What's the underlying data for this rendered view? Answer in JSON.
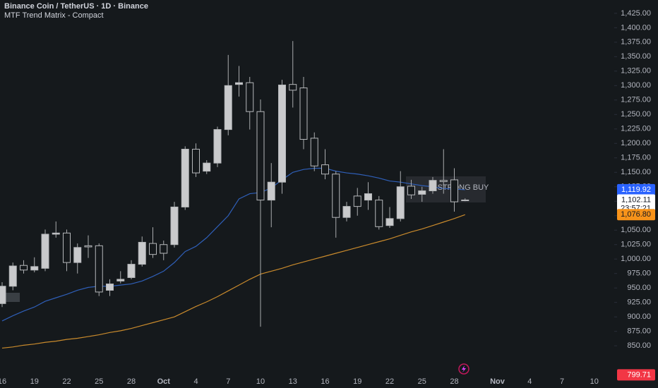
{
  "chart_data": {
    "type": "candlestick",
    "title": "Binance Coin / TetherUS · 1D · Binance",
    "subtitle": "MTF Trend Matrix - Compact",
    "categories": [
      "16",
      null,
      null,
      "19",
      null,
      null,
      "22",
      null,
      null,
      "25",
      null,
      null,
      "28",
      null,
      null,
      "Oct",
      null,
      null,
      "4",
      null,
      null,
      "7",
      null,
      null,
      "10",
      null,
      null,
      "13",
      null,
      null,
      "16",
      null,
      null,
      "19",
      null,
      null,
      "22",
      null,
      null,
      "25",
      null,
      null,
      "28",
      null,
      null,
      null,
      "Nov",
      null,
      null,
      "4",
      null,
      null,
      "7",
      null,
      null,
      "10"
    ],
    "open": [
      923,
      953,
      989,
      981,
      984,
      1043,
      1045,
      994,
      1023,
      1023,
      946,
      962,
      968,
      991,
      1027,
      1025,
      1025,
      1090,
      1190,
      1152,
      1166,
      1224,
      1302,
      1305,
      1255,
      1102,
      1133,
      1302,
      1296,
      1209,
      1163,
      1147,
      1072,
      1109,
      1102,
      1102,
      1058,
      1070,
      1126,
      1112,
      1118,
      1136,
      1137,
      1101,
      null,
      null,
      null,
      null,
      null,
      null,
      null,
      null,
      null,
      null,
      null,
      null
    ],
    "high": [
      960,
      994,
      998,
      1003,
      1051,
      1065,
      1051,
      1027,
      1041,
      1027,
      965,
      979,
      998,
      1039,
      1055,
      1032,
      1099,
      1195,
      1200,
      1171,
      1229,
      1353,
      1334,
      1315,
      1276,
      1166,
      1310,
      1377,
      1315,
      1219,
      1190,
      1152,
      1099,
      1123,
      1133,
      1109,
      1090,
      1152,
      1137,
      1125,
      1142,
      1190,
      1157,
      1105,
      null,
      null,
      null,
      null,
      null,
      null,
      null,
      null,
      null,
      null,
      null,
      null
    ],
    "low": [
      917,
      946,
      975,
      977,
      979,
      1037,
      979,
      975,
      1002,
      936,
      936,
      958,
      965,
      987,
      1002,
      998,
      1020,
      1085,
      1142,
      1147,
      1159,
      1214,
      1281,
      1224,
      883,
      1055,
      1113,
      1262,
      1190,
      1152,
      1138,
      1037,
      1065,
      1075,
      1085,
      1051,
      1054,
      1065,
      1104,
      1099,
      1113,
      1113,
      1082,
      1100,
      null,
      null,
      null,
      null,
      null,
      null,
      null,
      null,
      null,
      null,
      null,
      null
    ],
    "close": [
      953,
      988,
      981,
      987,
      1043,
      1045,
      994,
      1020,
      1021,
      943,
      957,
      965,
      991,
      1029,
      1008,
      1010,
      1090,
      1190,
      1149,
      1166,
      1224,
      1300,
      1305,
      1255,
      1102,
      1133,
      1301,
      1292,
      1207,
      1161,
      1147,
      1072,
      1091,
      1091,
      1113,
      1056,
      1070,
      1125,
      1111,
      1118,
      1136,
      1134,
      1099,
      1102.11,
      null,
      null,
      null,
      null,
      null,
      null,
      null,
      null,
      null,
      null,
      null,
      null
    ],
    "up_color": "#c9cacc",
    "down_color": "#15191c",
    "lines": [
      {
        "color": "#2f5fb8",
        "values": [
          893,
          902,
          910,
          917,
          927,
          933,
          939,
          946,
          951,
          953,
          953,
          955,
          957,
          962,
          970,
          979,
          994,
          1013,
          1022,
          1037,
          1056,
          1075,
          1104,
          1113,
          1115,
          1123,
          1137,
          1150,
          1155,
          1157,
          1157,
          1152,
          1149,
          1147,
          1144,
          1140,
          1135,
          1133,
          1130,
          1127,
          1125,
          1122,
          1121,
          1119.92,
          null,
          null,
          null,
          null,
          null,
          null,
          null,
          null,
          null,
          null,
          null,
          null
        ]
      },
      {
        "color": "#c98a2c",
        "values": [
          846,
          848,
          851,
          853,
          856,
          858,
          861,
          863,
          866,
          869,
          873,
          876,
          880,
          885,
          890,
          895,
          900,
          909,
          918,
          926,
          935,
          945,
          955,
          965,
          974,
          979,
          984,
          990,
          995,
          1000,
          1005,
          1010,
          1015,
          1020,
          1025,
          1030,
          1035,
          1041,
          1047,
          1052,
          1058,
          1064,
          1070,
          1076.8,
          null,
          null,
          null,
          null,
          null,
          null,
          null,
          null,
          null,
          null,
          null,
          null
        ]
      }
    ],
    "ylim": [
      777,
      1448
    ],
    "yticks": [
      {
        "value": 850,
        "label": "850.00"
      },
      {
        "value": 875,
        "label": "875.00"
      },
      {
        "value": 900,
        "label": "900.00"
      },
      {
        "value": 925,
        "label": "925.00"
      },
      {
        "value": 950,
        "label": "950.00"
      },
      {
        "value": 975,
        "label": "975.00"
      },
      {
        "value": 1000,
        "label": "1,000.00"
      },
      {
        "value": 1025,
        "label": "1,025.00"
      },
      {
        "value": 1050,
        "label": "1,050.00"
      },
      {
        "value": 1075,
        "label": "1,075.00"
      },
      {
        "value": 1100,
        "label": "1,100.00"
      },
      {
        "value": 1125,
        "label": "1,125.00"
      },
      {
        "value": 1150,
        "label": "1,150.00"
      },
      {
        "value": 1175,
        "label": "1,175.00"
      },
      {
        "value": 1200,
        "label": "1,200.00"
      },
      {
        "value": 1225,
        "label": "1,225.00"
      },
      {
        "value": 1250,
        "label": "1,250.00"
      },
      {
        "value": 1275,
        "label": "1,275.00"
      },
      {
        "value": 1300,
        "label": "1,300.00"
      },
      {
        "value": 1325,
        "label": "1,325.00"
      },
      {
        "value": 1350,
        "label": "1,350.00"
      },
      {
        "value": 1375,
        "label": "1,375.00"
      },
      {
        "value": 1400,
        "label": "1,400.00"
      },
      {
        "value": 1425,
        "label": "1,425.00"
      }
    ],
    "price_tags": [
      {
        "value": 1119.92,
        "label": "1,119.92",
        "color": "#2962ff",
        "text_color": "#ffffff"
      },
      {
        "value": 1102.11,
        "label": "1,102.11",
        "countdown": "23:57:21",
        "color": "#ffffff",
        "text_color": "#131722"
      },
      {
        "value": 1076.8,
        "label": "1,076.80",
        "color": "#f7931a",
        "text_color": "#131722"
      },
      {
        "value": 799.71,
        "label": "799.71",
        "color": "#f23645",
        "text_color": "#ffffff"
      }
    ],
    "annotation": {
      "text": "STRONG BUY",
      "color": "#22ab94"
    }
  }
}
